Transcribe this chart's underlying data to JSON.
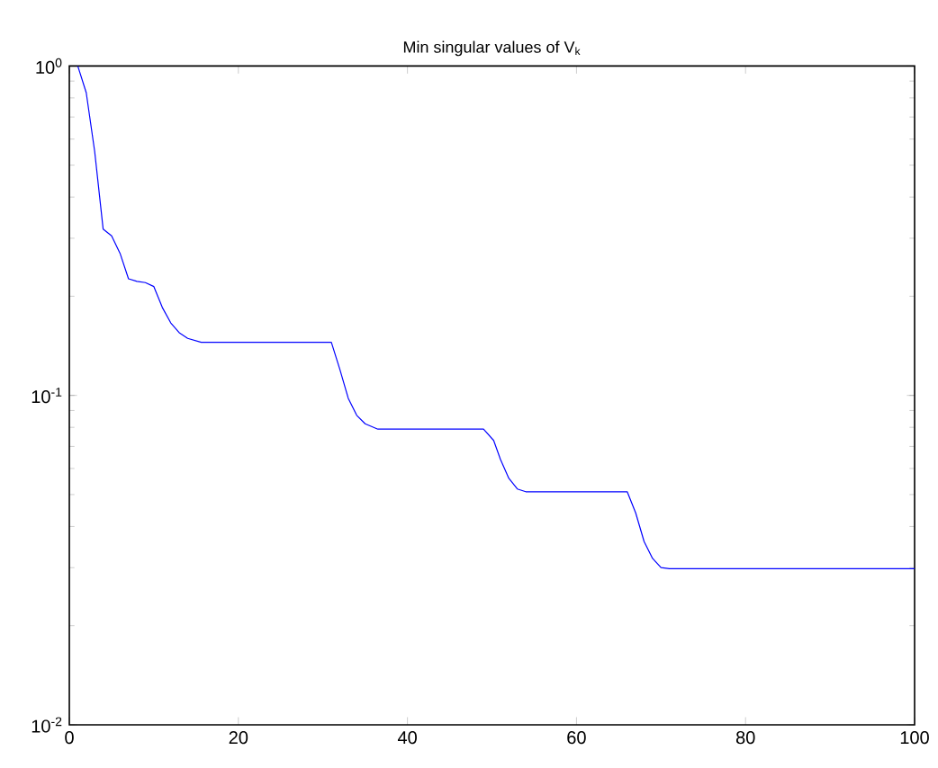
{
  "chart_data": {
    "type": "line",
    "title": "Min singular values of V$_{k}$",
    "log": "y",
    "marker": "none",
    "line_style": "solid",
    "grid": false,
    "xlim": [
      0,
      100
    ],
    "ylim": [
      0.01,
      1
    ],
    "xticks": [
      0,
      20,
      40,
      60,
      80,
      100
    ],
    "yticks": [
      {
        "value": 0.01,
        "label": "10$^{-2}$"
      },
      {
        "value": 0.1,
        "label": "10$^{-1}$"
      },
      {
        "value": 1,
        "label": "10$^{0}$"
      }
    ],
    "series": [
      {
        "color": "#0000ff",
        "x": [
          1,
          2,
          3,
          4,
          5,
          6,
          7,
          8,
          9,
          10,
          11,
          12,
          13,
          14,
          15.6,
          31,
          32,
          33,
          34,
          35,
          36.5,
          49,
          50.2,
          51,
          52,
          53,
          54,
          66,
          67,
          68,
          69,
          70,
          71,
          100
        ],
        "values": [
          1.0,
          0.83,
          0.55,
          0.32,
          0.305,
          0.27,
          0.226,
          0.222,
          0.22,
          0.214,
          0.185,
          0.166,
          0.155,
          0.149,
          0.145,
          0.145,
          0.12,
          0.098,
          0.087,
          0.082,
          0.079,
          0.079,
          0.073,
          0.064,
          0.056,
          0.052,
          0.051,
          0.051,
          0.044,
          0.036,
          0.032,
          0.03,
          0.0298,
          0.0298
        ]
      }
    ]
  }
}
